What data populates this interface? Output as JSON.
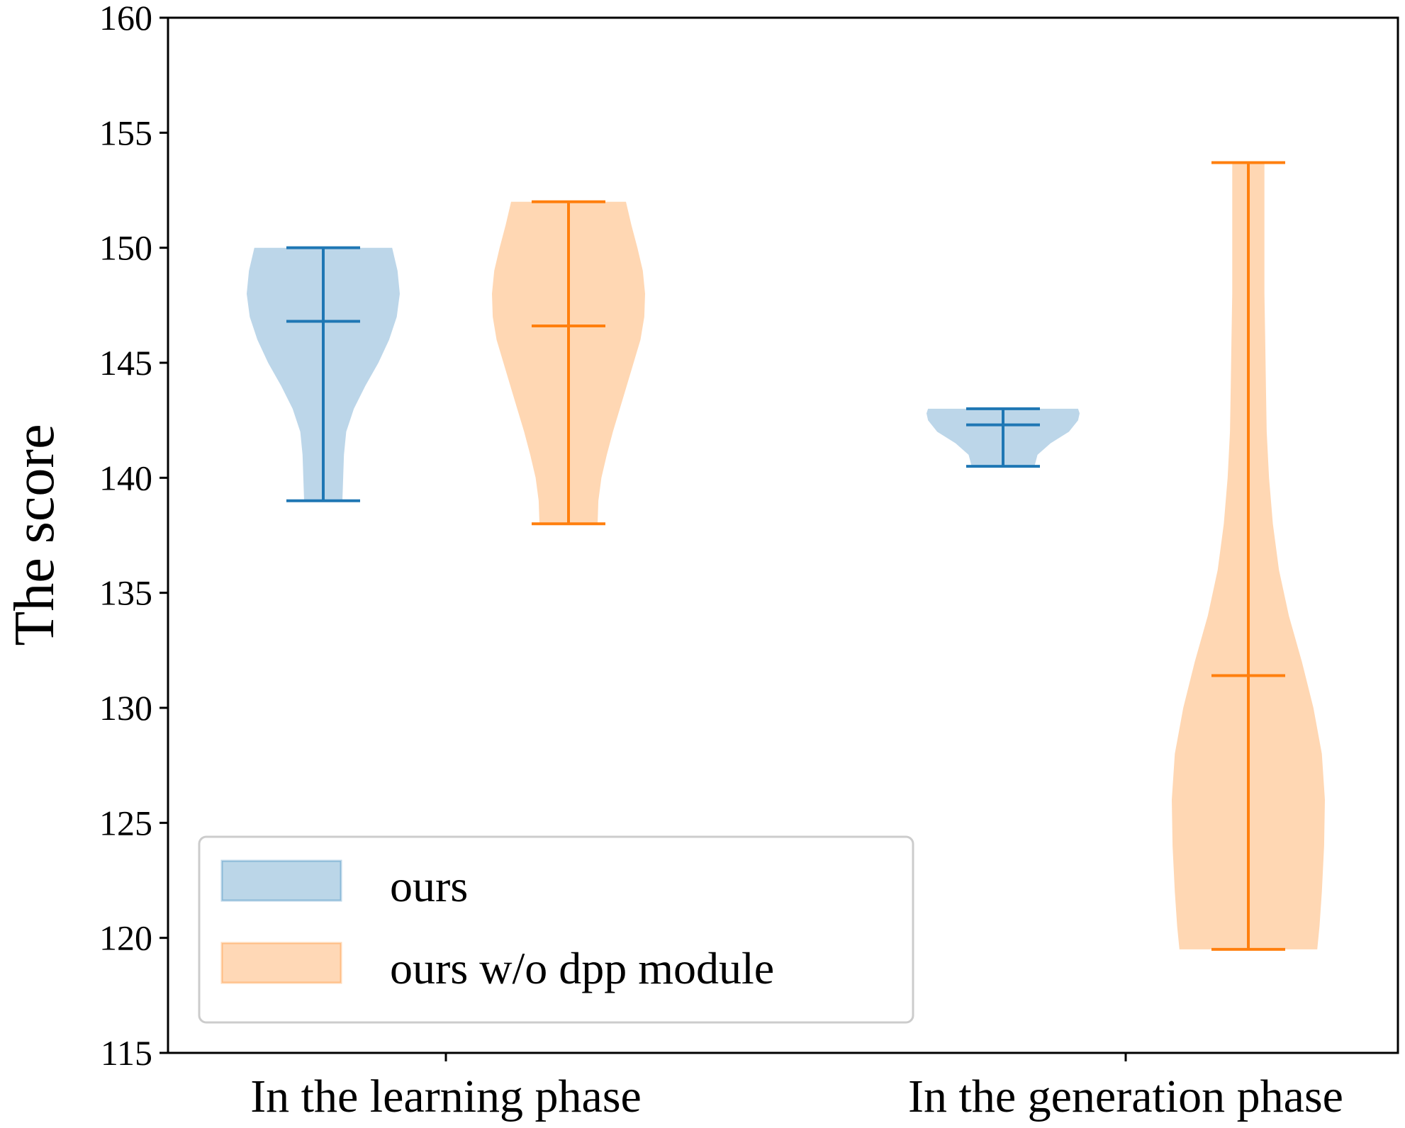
{
  "chart_data": {
    "type": "violin",
    "title": "",
    "xlabel": "",
    "ylabel": "The score",
    "ylim": [
      115,
      160
    ],
    "yticks": [
      115,
      120,
      125,
      130,
      135,
      140,
      145,
      150,
      155,
      160
    ],
    "categories": [
      "In the learning phase",
      "In the generation phase"
    ],
    "grid": false,
    "legend_placement": "lower-left",
    "series": [
      {
        "name": "ours",
        "color": "#1f77b4",
        "fill": "#a6c8e2",
        "violins": [
          {
            "category": "In the learning phase",
            "min": 139.0,
            "max": 150.0,
            "mean": 146.8,
            "density": [
              [
                139.0,
                0.25
              ],
              [
                140.0,
                0.26
              ],
              [
                141.0,
                0.27
              ],
              [
                142.0,
                0.3
              ],
              [
                143.0,
                0.4
              ],
              [
                144.0,
                0.55
              ],
              [
                145.0,
                0.72
              ],
              [
                146.0,
                0.86
              ],
              [
                147.0,
                0.96
              ],
              [
                148.0,
                1.0
              ],
              [
                149.0,
                0.97
              ],
              [
                150.0,
                0.9
              ]
            ]
          },
          {
            "category": "In the generation phase",
            "min": 140.5,
            "max": 143.0,
            "mean": 142.3,
            "density": [
              [
                140.5,
                0.41
              ],
              [
                141.0,
                0.45
              ],
              [
                141.5,
                0.62
              ],
              [
                142.0,
                0.86
              ],
              [
                142.5,
                0.98
              ],
              [
                142.8,
                1.0
              ],
              [
                143.0,
                0.98
              ]
            ]
          }
        ]
      },
      {
        "name": "ours w/o dpp module",
        "color": "#ff7f0e",
        "fill": "#ffc999",
        "violins": [
          {
            "category": "In the learning phase",
            "min": 138.0,
            "max": 152.0,
            "mean": 146.6,
            "density": [
              [
                138.0,
                0.38
              ],
              [
                139.0,
                0.39
              ],
              [
                140.0,
                0.43
              ],
              [
                141.0,
                0.5
              ],
              [
                142.0,
                0.58
              ],
              [
                143.0,
                0.67
              ],
              [
                144.0,
                0.76
              ],
              [
                145.0,
                0.85
              ],
              [
                146.0,
                0.94
              ],
              [
                147.0,
                0.99
              ],
              [
                148.0,
                1.0
              ],
              [
                149.0,
                0.97
              ],
              [
                150.0,
                0.9
              ],
              [
                151.0,
                0.82
              ],
              [
                152.0,
                0.75
              ]
            ]
          },
          {
            "category": "In the generation phase",
            "min": 119.5,
            "max": 153.7,
            "mean": 131.4,
            "density": [
              [
                119.5,
                0.9
              ],
              [
                120.5,
                0.93
              ],
              [
                122.0,
                0.96
              ],
              [
                124.0,
                0.99
              ],
              [
                126.0,
                1.0
              ],
              [
                128.0,
                0.96
              ],
              [
                130.0,
                0.85
              ],
              [
                132.0,
                0.7
              ],
              [
                134.0,
                0.53
              ],
              [
                136.0,
                0.4
              ],
              [
                138.0,
                0.32
              ],
              [
                140.0,
                0.27
              ],
              [
                142.0,
                0.24
              ],
              [
                144.0,
                0.23
              ],
              [
                146.0,
                0.22
              ],
              [
                148.0,
                0.21
              ],
              [
                150.0,
                0.21
              ],
              [
                152.0,
                0.21
              ],
              [
                153.7,
                0.21
              ]
            ]
          }
        ]
      }
    ]
  }
}
